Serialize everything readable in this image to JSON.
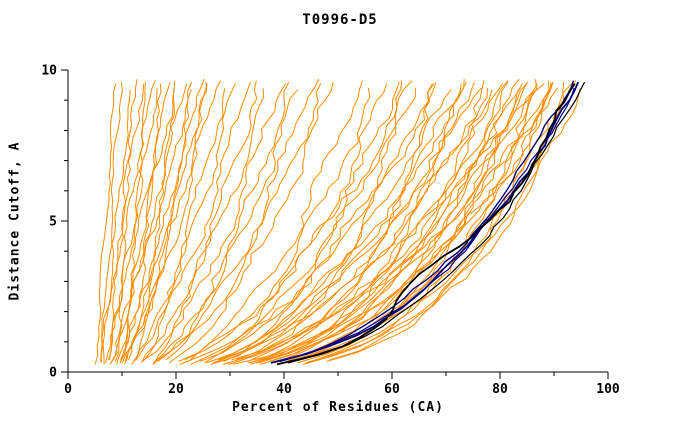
{
  "page": {
    "background": "#ffffff"
  },
  "chart_data": {
    "type": "line",
    "title": "T0996-D5",
    "xlabel": "Percent of Residues (CA)",
    "ylabel": "Distance Cutoff, A",
    "xlim": [
      0,
      100
    ],
    "ylim": [
      0,
      10
    ],
    "x_major_ticks": [
      0,
      20,
      40,
      60,
      80,
      100
    ],
    "x_minor_ticks": [
      10,
      30,
      50,
      70,
      90
    ],
    "y_major_ticks": [
      0,
      5,
      10
    ],
    "y_minor_ticks": [
      1,
      2,
      3,
      4,
      6,
      7,
      8,
      9
    ],
    "grid": false,
    "legend": null,
    "colors": {
      "models": "#FF8C00",
      "highlight_navy": "#000080",
      "highlight_black": "#000000",
      "axis": "#000000",
      "text": "#000000"
    },
    "sampling": {
      "cutoff_min": 0.25,
      "cutoff_max": 9.7,
      "cutoff_step": 0.3
    },
    "model_curves": {
      "color": "#FF8C00",
      "stroke_width": 1,
      "note": "each curve = [percent_near_cutoff0, percent_at_cutoff10, shape_exponent, jitter_amp]; x(d)=x0+(x10-x0)*(d/10)^c",
      "curves": [
        [
          5,
          9,
          1.0,
          0.3
        ],
        [
          6,
          10,
          1.0,
          0.4
        ],
        [
          6,
          12,
          1.0,
          0.4
        ],
        [
          7,
          13,
          0.95,
          0.5
        ],
        [
          6,
          14,
          1.0,
          0.6
        ],
        [
          7,
          15,
          0.9,
          0.5
        ],
        [
          8,
          16,
          0.95,
          0.6
        ],
        [
          7,
          17,
          0.9,
          0.5
        ],
        [
          8,
          18,
          0.85,
          0.6
        ],
        [
          9,
          19,
          0.9,
          0.5
        ],
        [
          8,
          20,
          0.85,
          0.7
        ],
        [
          9,
          21,
          0.8,
          0.6
        ],
        [
          8,
          22,
          0.85,
          0.7
        ],
        [
          9,
          23,
          0.8,
          0.6
        ],
        [
          10,
          24,
          0.8,
          0.7
        ],
        [
          9,
          25,
          0.75,
          0.6
        ],
        [
          10,
          26,
          0.8,
          0.7
        ],
        [
          9,
          27,
          0.75,
          0.8
        ],
        [
          10,
          28,
          0.75,
          0.7
        ],
        [
          11,
          30,
          0.7,
          0.8
        ],
        [
          10,
          32,
          0.7,
          0.8
        ],
        [
          11,
          34,
          0.68,
          0.9
        ],
        [
          12,
          36,
          0.66,
          0.8
        ],
        [
          11,
          38,
          0.65,
          0.9
        ],
        [
          12,
          40,
          0.62,
          0.9
        ],
        [
          13,
          42,
          0.6,
          0.9
        ],
        [
          12,
          44,
          0.6,
          1.0
        ],
        [
          13,
          46,
          0.58,
          0.9
        ],
        [
          12,
          48,
          0.56,
          1.0
        ],
        [
          13,
          50,
          0.55,
          1.0
        ],
        [
          14,
          55,
          0.5,
          1.0
        ],
        [
          13,
          58,
          0.48,
          1.0
        ],
        [
          14,
          60,
          0.46,
          1.1
        ],
        [
          15,
          62,
          0.45,
          1.0
        ],
        [
          14,
          64,
          0.44,
          1.1
        ],
        [
          15,
          66,
          0.43,
          1.0
        ],
        [
          16,
          68,
          0.42,
          1.1
        ],
        [
          15,
          70,
          0.41,
          1.0
        ],
        [
          16,
          72,
          0.4,
          1.1
        ],
        [
          15,
          74,
          0.4,
          1.0
        ],
        [
          16,
          75,
          0.39,
          1.1
        ],
        [
          17,
          76,
          0.38,
          1.0
        ],
        [
          16,
          78,
          0.38,
          1.1
        ],
        [
          17,
          80,
          0.37,
          1.0
        ],
        [
          16,
          81,
          0.37,
          1.1
        ],
        [
          17,
          82,
          0.36,
          1.0
        ],
        [
          18,
          83,
          0.36,
          1.1
        ],
        [
          17,
          84,
          0.35,
          1.0
        ],
        [
          18,
          85,
          0.35,
          1.1
        ],
        [
          17,
          86,
          0.34,
          1.0
        ],
        [
          18,
          87,
          0.34,
          1.1
        ],
        [
          19,
          88,
          0.33,
          1.0
        ],
        [
          18,
          89,
          0.33,
          1.1
        ],
        [
          19,
          90,
          0.32,
          1.0
        ],
        [
          18,
          91,
          0.32,
          1.1
        ],
        [
          19,
          92,
          0.32,
          1.0
        ],
        [
          20,
          93,
          0.31,
          1.1
        ],
        [
          19,
          94,
          0.31,
          1.0
        ],
        [
          20,
          95,
          0.3,
          1.0
        ],
        [
          19,
          96,
          0.3,
          0.9
        ],
        [
          12,
          70,
          0.5,
          1.2
        ],
        [
          13,
          75,
          0.48,
          1.2
        ],
        [
          14,
          80,
          0.45,
          1.2
        ],
        [
          12,
          85,
          0.42,
          1.2
        ],
        [
          13,
          88,
          0.4,
          1.2
        ],
        [
          15,
          90,
          0.38,
          1.2
        ],
        [
          11,
          65,
          0.52,
          1.2
        ],
        [
          12,
          78,
          0.46,
          1.2
        ],
        [
          14,
          86,
          0.41,
          1.2
        ],
        [
          13,
          92,
          0.37,
          1.2
        ]
      ]
    },
    "highlight_curves": [
      {
        "color": "#000080",
        "width": 1.8,
        "x0": 15,
        "x10": 96,
        "c": 0.36,
        "amp": 0.5
      },
      {
        "color": "#000080",
        "width": 1.4,
        "x0": 16,
        "x10": 94.5,
        "c": 0.37,
        "amp": 0.6
      },
      {
        "color": "#00008b",
        "width": 1.2,
        "x0": 14,
        "x10": 95.5,
        "c": 0.35,
        "amp": 0.5
      },
      {
        "color": "#000000",
        "width": 1.8,
        "x0": 15,
        "x10": 95,
        "c": 0.33,
        "amp": 0.7,
        "bulge": {
          "a": -5,
          "d0": 3,
          "s": 1.3
        }
      },
      {
        "color": "#000000",
        "width": 1.2,
        "x0": 16,
        "x10": 96.5,
        "c": 0.34,
        "amp": 0.5
      }
    ]
  }
}
